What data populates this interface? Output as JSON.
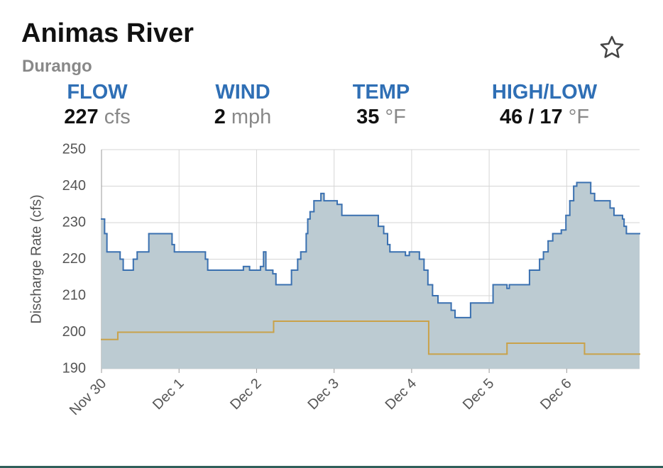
{
  "header": {
    "title": "Animas River",
    "subtitle": "Durango"
  },
  "stats": [
    {
      "label": "FLOW",
      "value": "227",
      "unit": "cfs"
    },
    {
      "label": "WIND",
      "value": "2",
      "unit": "mph"
    },
    {
      "label": "TEMP",
      "value": "35",
      "unit": "°F"
    },
    {
      "label": "HIGH/LOW",
      "value": "46 / 17",
      "unit": "°F"
    }
  ],
  "chart_data": {
    "type": "step",
    "y_label": "Discharge Rate (cfs)",
    "xlim": [
      0,
      6.94
    ],
    "ylim": [
      190,
      250
    ],
    "yticks": [
      190,
      200,
      210,
      220,
      230,
      240,
      250
    ],
    "xticks": [
      {
        "value": 0,
        "label": "Nov 30"
      },
      {
        "value": 1,
        "label": "Dec 1"
      },
      {
        "value": 2,
        "label": "Dec 2"
      },
      {
        "value": 3,
        "label": "Dec 3"
      },
      {
        "value": 4,
        "label": "Dec 4"
      },
      {
        "value": 5,
        "label": "Dec 5"
      },
      {
        "value": 6,
        "label": "Dec 6"
      }
    ],
    "grid": true,
    "series": [
      {
        "color": "#3a70b0",
        "fill": "#bccbd2",
        "x": [
          0,
          0.04,
          0.07,
          0.24,
          0.28,
          0.41,
          0.46,
          0.61,
          0.91,
          0.94,
          1.34,
          1.37,
          1.83,
          1.91,
          2.05,
          2.09,
          2.12,
          2.21,
          2.25,
          2.45,
          2.53,
          2.57,
          2.64,
          2.66,
          2.69,
          2.74,
          2.83,
          2.87,
          3.04,
          3.1,
          3.57,
          3.64,
          3.69,
          3.72,
          3.92,
          3.97,
          4.1,
          4.16,
          4.21,
          4.27,
          4.34,
          4.51,
          4.56,
          4.76,
          5.05,
          5.23,
          5.26,
          5.52,
          5.65,
          5.7,
          5.76,
          5.82,
          5.93,
          5.99,
          6.04,
          6.09,
          6.13,
          6.31,
          6.36,
          6.56,
          6.61,
          6.72,
          6.74,
          6.77
        ],
        "values": [
          231,
          227,
          222,
          220,
          217,
          220,
          222,
          227,
          224,
          222,
          220,
          217,
          218,
          217,
          218,
          222,
          217,
          216,
          213,
          217,
          220,
          222,
          227,
          231,
          233,
          236,
          238,
          236,
          235,
          232,
          229,
          227,
          224,
          222,
          221,
          222,
          220,
          217,
          213,
          210,
          208,
          206,
          204,
          208,
          213,
          212,
          213,
          217,
          220,
          222,
          225,
          227,
          228,
          232,
          236,
          240,
          241,
          238,
          236,
          234,
          232,
          231,
          229,
          227
        ]
      },
      {
        "color": "#c9a24a",
        "x": [
          0,
          0.21,
          2.22,
          4.22,
          5.23,
          6.23
        ],
        "values": [
          198,
          200,
          203,
          194,
          197,
          194
        ]
      }
    ]
  }
}
